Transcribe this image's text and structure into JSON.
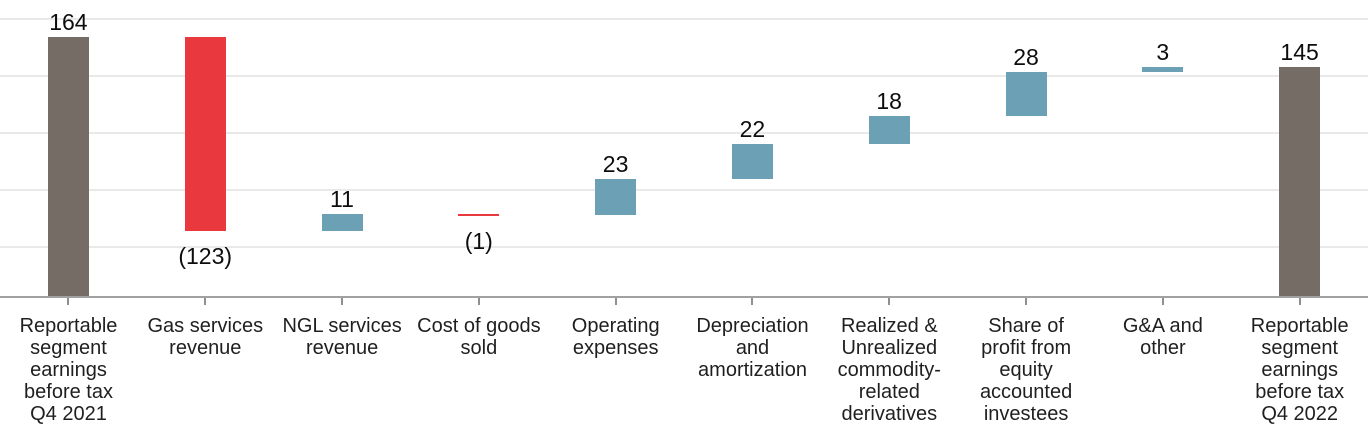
{
  "colors": {
    "total_bar": "#766c66",
    "increase_bar": "#6ba0b5",
    "decrease_bar": "#e9393e",
    "gridline": "#e9e9e9",
    "axis_line": "#a1a1a1",
    "tick": "#8f8f8f",
    "value_label_text": "#0d0d0d",
    "category_label_text": "#1f1f1f",
    "background": "#ffffff"
  },
  "chart_data": {
    "type": "bar",
    "subtype": "waterfall",
    "title": "",
    "xlabel": "",
    "ylabel": "",
    "y_axis_labels_visible": false,
    "grid": "horizontal",
    "legend": "none",
    "ylim": [
      0,
      180
    ],
    "categories": [
      "Reportable segment earnings before tax Q4 2021",
      "Gas services revenue",
      "NGL services revenue",
      "Cost of goods sold",
      "Operating expenses",
      "Depreciation and amortization",
      "Realized & Unrealized commodity-related derivatives",
      "Share of profit from equity accounted investees",
      "G&A and other",
      "Reportable segment earnings before tax Q4 2022"
    ],
    "values": [
      164,
      -123,
      11,
      -1,
      23,
      22,
      18,
      28,
      3,
      145
    ],
    "bars": [
      {
        "category": "Reportable segment earnings before tax Q4 2021",
        "lines": "Reportable\nsegment\nearnings\nbefore tax\nQ4 2021",
        "value": 164,
        "start": 0,
        "end": 164,
        "role": "total",
        "label": "164",
        "label_position": "above"
      },
      {
        "category": "Gas services revenue",
        "lines": "Gas services\nrevenue",
        "value": -123,
        "start": 164,
        "end": 41,
        "role": "decrease",
        "label": "(123)",
        "label_position": "below"
      },
      {
        "category": "NGL services revenue",
        "lines": "NGL services\nrevenue",
        "value": 11,
        "start": 41,
        "end": 52,
        "role": "increase",
        "label": "11",
        "label_position": "above"
      },
      {
        "category": "Cost of goods sold",
        "lines": "Cost of goods\nsold",
        "value": -1,
        "start": 52,
        "end": 51,
        "role": "decrease",
        "label": "(1)",
        "label_position": "below"
      },
      {
        "category": "Operating expenses",
        "lines": "Operating\nexpenses",
        "value": 23,
        "start": 51,
        "end": 74,
        "role": "increase",
        "label": "23",
        "label_position": "above"
      },
      {
        "category": "Depreciation and amortization",
        "lines": "Depreciation\nand\namortization",
        "value": 22,
        "start": 74,
        "end": 96,
        "role": "increase",
        "label": "22",
        "label_position": "above"
      },
      {
        "category": "Realized & Unrealized commodity-related derivatives",
        "lines": "Realized &\nUnrealized\ncommodity-\nrelated\nderivatives",
        "value": 18,
        "start": 96,
        "end": 114,
        "role": "increase",
        "label": "18",
        "label_position": "above"
      },
      {
        "category": "Share of profit from equity accounted investees",
        "lines": "Share of\nprofit from\nequity\naccounted\ninvestees",
        "value": 28,
        "start": 114,
        "end": 142,
        "role": "increase",
        "label": "28",
        "label_position": "above"
      },
      {
        "category": "G&A and other",
        "lines": "G&A and\nother",
        "value": 3,
        "start": 142,
        "end": 145,
        "role": "increase",
        "label": "3",
        "label_position": "above"
      },
      {
        "category": "Reportable segment earnings before tax Q4 2022",
        "lines": "Reportable\nsegment\nearnings\nbefore tax\nQ4 2022",
        "value": 145,
        "start": 0,
        "end": 145,
        "role": "total",
        "label": "145",
        "label_position": "above"
      }
    ]
  }
}
